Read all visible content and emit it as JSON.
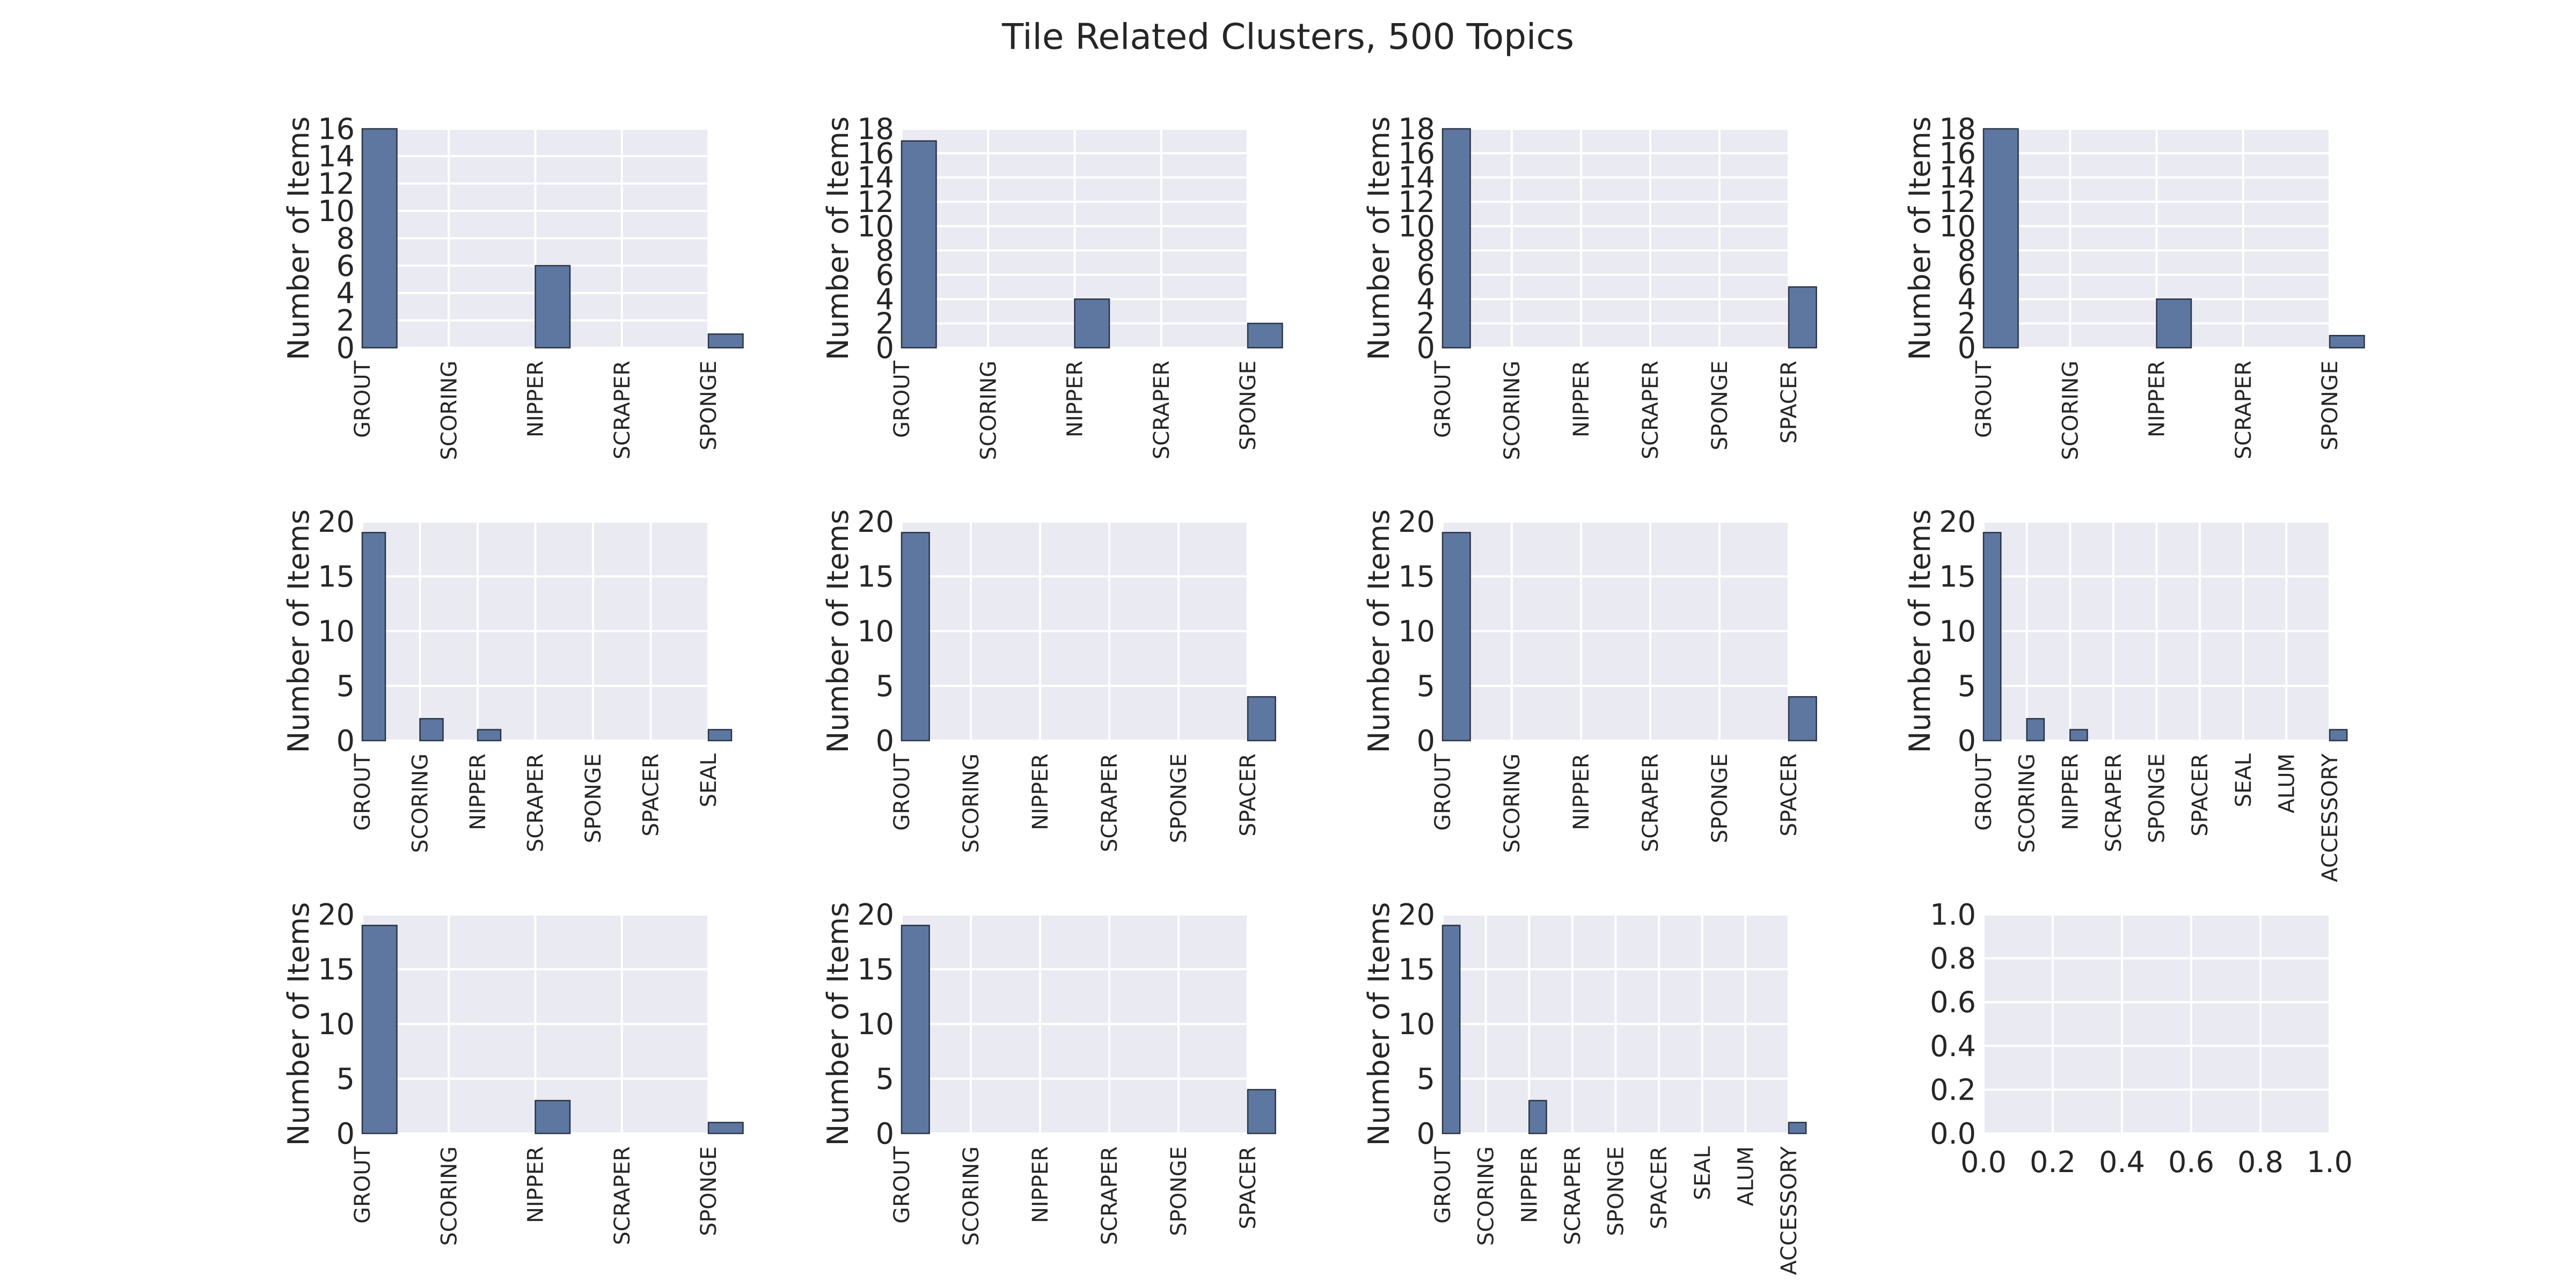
{
  "title": "Tile Related Clusters, 500 Topics",
  "colors": {
    "bar": "#5d77a0",
    "bar_edge": "#2b3346",
    "panel": "#eaeaf2",
    "grid": "#ffffff",
    "text": "#262626"
  },
  "chart_data": [
    {
      "type": "bar",
      "ylabel": "Number of Items",
      "ylim": [
        0,
        16
      ],
      "yticks": [
        "0",
        "2",
        "4",
        "6",
        "8",
        "10",
        "12",
        "14",
        "16"
      ],
      "categories": [
        "GROUT",
        "SCORING",
        "NIPPER",
        "SCRAPER",
        "SPONGE"
      ],
      "values": [
        16,
        0,
        6,
        0,
        1
      ]
    },
    {
      "type": "bar",
      "ylabel": "Number of Items",
      "ylim": [
        0,
        18
      ],
      "yticks": [
        "0",
        "2",
        "4",
        "6",
        "8",
        "10",
        "12",
        "14",
        "16",
        "18"
      ],
      "categories": [
        "GROUT",
        "SCORING",
        "NIPPER",
        "SCRAPER",
        "SPONGE"
      ],
      "values": [
        17,
        0,
        4,
        0,
        2
      ]
    },
    {
      "type": "bar",
      "ylabel": "Number of Items",
      "ylim": [
        0,
        18
      ],
      "yticks": [
        "0",
        "2",
        "4",
        "6",
        "8",
        "10",
        "12",
        "14",
        "16",
        "18"
      ],
      "categories": [
        "GROUT",
        "SCORING",
        "NIPPER",
        "SCRAPER",
        "SPONGE",
        "SPACER"
      ],
      "values": [
        18,
        0,
        0,
        0,
        0,
        5
      ]
    },
    {
      "type": "bar",
      "ylabel": "Number of Items",
      "ylim": [
        0,
        18
      ],
      "yticks": [
        "0",
        "2",
        "4",
        "6",
        "8",
        "10",
        "12",
        "14",
        "16",
        "18"
      ],
      "categories": [
        "GROUT",
        "SCORING",
        "NIPPER",
        "SCRAPER",
        "SPONGE"
      ],
      "values": [
        18,
        0,
        4,
        0,
        1
      ]
    },
    {
      "type": "bar",
      "ylabel": "Number of Items",
      "ylim": [
        0,
        20
      ],
      "yticks": [
        "0",
        "5",
        "10",
        "15",
        "20"
      ],
      "categories": [
        "GROUT",
        "SCORING",
        "NIPPER",
        "SCRAPER",
        "SPONGE",
        "SPACER",
        "SEAL"
      ],
      "values": [
        19,
        2,
        1,
        0,
        0,
        0,
        1
      ]
    },
    {
      "type": "bar",
      "ylabel": "Number of Items",
      "ylim": [
        0,
        20
      ],
      "yticks": [
        "0",
        "5",
        "10",
        "15",
        "20"
      ],
      "categories": [
        "GROUT",
        "SCORING",
        "NIPPER",
        "SCRAPER",
        "SPONGE",
        "SPACER"
      ],
      "values": [
        19,
        0,
        0,
        0,
        0,
        4
      ]
    },
    {
      "type": "bar",
      "ylabel": "Number of Items",
      "ylim": [
        0,
        20
      ],
      "yticks": [
        "0",
        "5",
        "10",
        "15",
        "20"
      ],
      "categories": [
        "GROUT",
        "SCORING",
        "NIPPER",
        "SCRAPER",
        "SPONGE",
        "SPACER"
      ],
      "values": [
        19,
        0,
        0,
        0,
        0,
        4
      ]
    },
    {
      "type": "bar",
      "ylabel": "Number of Items",
      "ylim": [
        0,
        20
      ],
      "yticks": [
        "0",
        "5",
        "10",
        "15",
        "20"
      ],
      "categories": [
        "GROUT",
        "SCORING",
        "NIPPER",
        "SCRAPER",
        "SPONGE",
        "SPACER",
        "SEAL",
        "ALUM",
        "ACCESSORY"
      ],
      "values": [
        19,
        2,
        1,
        0,
        0,
        0,
        0,
        0,
        1
      ]
    },
    {
      "type": "bar",
      "ylabel": "Number of Items",
      "ylim": [
        0,
        20
      ],
      "yticks": [
        "0",
        "5",
        "10",
        "15",
        "20"
      ],
      "categories": [
        "GROUT",
        "SCORING",
        "NIPPER",
        "SCRAPER",
        "SPONGE"
      ],
      "values": [
        19,
        0,
        3,
        0,
        1
      ]
    },
    {
      "type": "bar",
      "ylabel": "Number of Items",
      "ylim": [
        0,
        20
      ],
      "yticks": [
        "0",
        "5",
        "10",
        "15",
        "20"
      ],
      "categories": [
        "GROUT",
        "SCORING",
        "NIPPER",
        "SCRAPER",
        "SPONGE",
        "SPACER"
      ],
      "values": [
        19,
        0,
        0,
        0,
        0,
        4
      ]
    },
    {
      "type": "bar",
      "ylabel": "Number of Items",
      "ylim": [
        0,
        20
      ],
      "yticks": [
        "0",
        "5",
        "10",
        "15",
        "20"
      ],
      "categories": [
        "GROUT",
        "SCORING",
        "NIPPER",
        "SCRAPER",
        "SPONGE",
        "SPACER",
        "SEAL",
        "ALUM",
        "ACCESSORY"
      ],
      "values": [
        19,
        0,
        3,
        0,
        0,
        0,
        0,
        0,
        1
      ]
    },
    {
      "type": "empty",
      "ylabel": "",
      "xlim": [
        0,
        1
      ],
      "ylim": [
        0,
        1
      ],
      "xticks": [
        "0.0",
        "0.2",
        "0.4",
        "0.6",
        "0.8",
        "1.0"
      ],
      "yticks": [
        "0.0",
        "0.2",
        "0.4",
        "0.6",
        "0.8",
        "1.0"
      ]
    }
  ]
}
